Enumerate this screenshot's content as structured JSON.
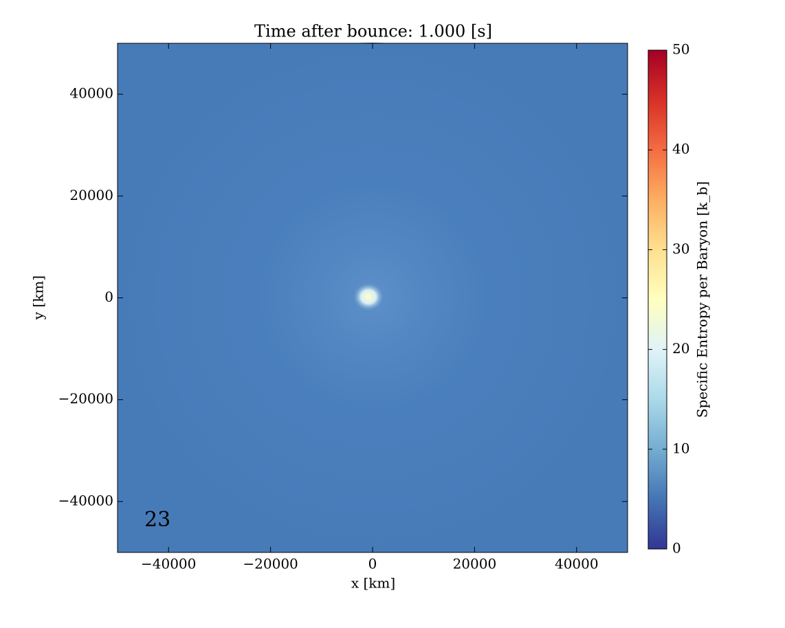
{
  "chart_data": {
    "type": "heatmap",
    "title": "Time after bounce: 1.000 [s]",
    "xlabel": "x [km]",
    "ylabel": "y [km]",
    "annotation": "23",
    "xlim": [
      -50000,
      50000
    ],
    "ylim": [
      -50000,
      50000
    ],
    "xticks": [
      {
        "value": -40000,
        "label": "−40000"
      },
      {
        "value": -20000,
        "label": "−20000"
      },
      0,
      20000,
      40000
    ],
    "yticks": [
      {
        "value": -40000,
        "label": "−40000"
      },
      {
        "value": -20000,
        "label": "−20000"
      },
      0,
      20000,
      40000
    ],
    "colorbar": {
      "label": "Specific Entropy per Baryon [k_b]",
      "lim": [
        0,
        50
      ],
      "ticks": [
        0,
        10,
        20,
        30,
        40,
        50
      ],
      "colormap": [
        "#313695",
        "#4575b4",
        "#74add1",
        "#abd9e9",
        "#e0f3f8",
        "#ffffbf",
        "#fee090",
        "#fdae61",
        "#f46d43",
        "#d73027",
        "#a50026"
      ]
    }
  }
}
